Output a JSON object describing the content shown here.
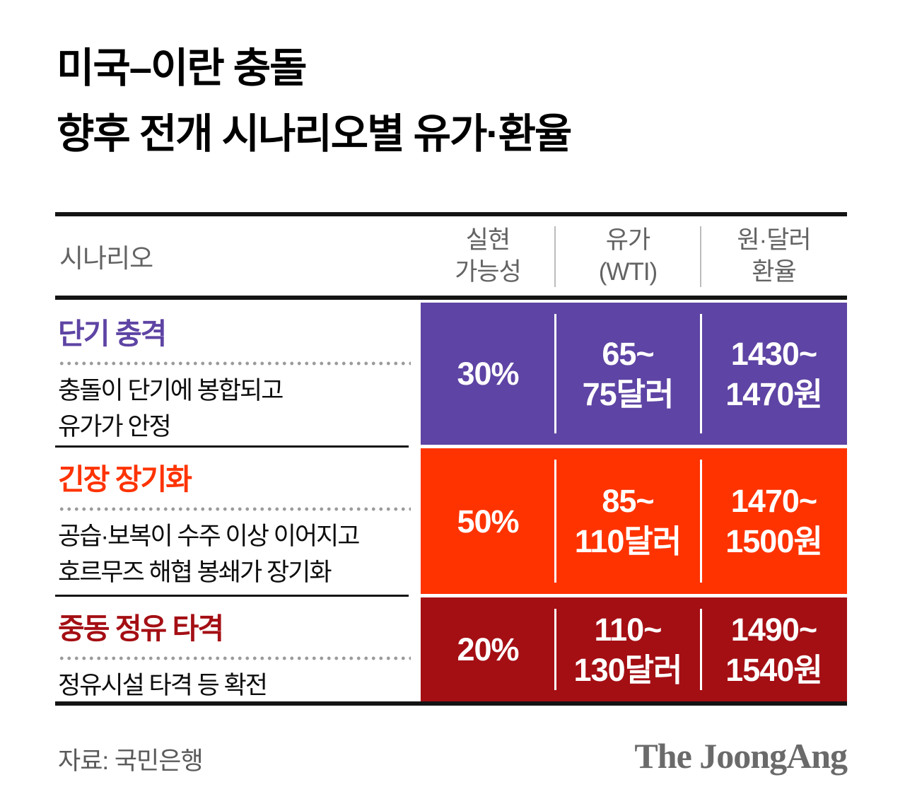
{
  "title": "미국–이란 충돌\n향후 전개 시나리오별 유가·환율",
  "table": {
    "header": {
      "scenario": "시나리오",
      "probability": "실현\n가능성",
      "oil": "유가\n(WTI)",
      "fx": "원·달러\n환율"
    },
    "rows": [
      {
        "name": "단기 충격",
        "desc": "충돌이 단기에 봉합되고\n유가가 안정",
        "probability": "30%",
        "oil": "65~\n75달러",
        "fx": "1430~\n1470원",
        "color": "#5e44a4"
      },
      {
        "name": "긴장 장기화",
        "desc": "공습·보복이 수주 이상 이어지고\n호르무즈 해협 봉쇄가 장기화",
        "probability": "50%",
        "oil": "85~\n110달러",
        "fx": "1470~\n1500원",
        "color": "#fe3300"
      },
      {
        "name": "중동 정유 타격",
        "desc": "정유시설 타격 등 확전",
        "probability": "20%",
        "oil": "110~\n130달러",
        "fx": "1490~\n1540원",
        "color": "#a40f14"
      }
    ]
  },
  "footer": {
    "source": "자료: 국민은행",
    "logo": "The JoongAng"
  },
  "chart_data": {
    "type": "table",
    "title": "미국–이란 충돌 향후 전개 시나리오별 유가·환율",
    "columns": [
      "시나리오",
      "실현 가능성",
      "유가 (WTI)",
      "원·달러 환율"
    ],
    "rows": [
      {
        "scenario": "단기 충격",
        "description": "충돌이 단기에 봉합되고 유가가 안정",
        "probability_pct": 30,
        "oil_price_wti_usd": [
          65,
          75
        ],
        "krw_usd_rate": [
          1430,
          1470
        ],
        "row_color": "#5e44a4"
      },
      {
        "scenario": "긴장 장기화",
        "description": "공습·보복이 수주 이상 이어지고 호르무즈 해협 봉쇄가 장기화",
        "probability_pct": 50,
        "oil_price_wti_usd": [
          85,
          110
        ],
        "krw_usd_rate": [
          1470,
          1500
        ],
        "row_color": "#fe3300"
      },
      {
        "scenario": "중동 정유 타격",
        "description": "정유시설 타격 등 확전",
        "probability_pct": 20,
        "oil_price_wti_usd": [
          110,
          130
        ],
        "krw_usd_rate": [
          1490,
          1540
        ],
        "row_color": "#a40f14"
      }
    ],
    "source": "자료: 국민은행",
    "publisher": "The JoongAng"
  }
}
